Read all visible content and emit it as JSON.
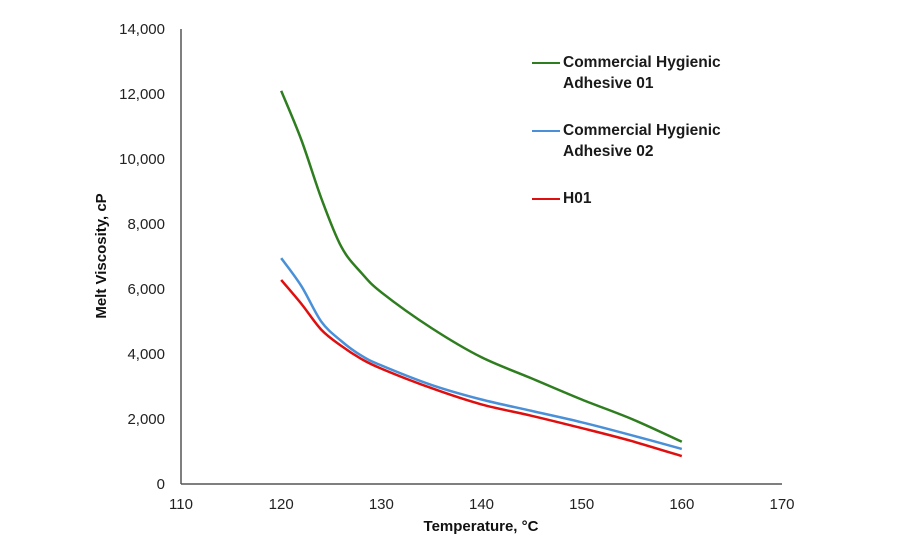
{
  "chart_data": {
    "type": "line",
    "title": "",
    "xlabel": "Temperature, °C",
    "ylabel": "Melt Viscosity, cP",
    "xlim": [
      110,
      170
    ],
    "ylim": [
      0,
      14000
    ],
    "x_ticks": [
      110,
      120,
      130,
      140,
      150,
      160,
      170
    ],
    "x_tick_labels": [
      "110",
      "120",
      "130",
      "140",
      "150",
      "160",
      "170"
    ],
    "y_ticks": [
      0,
      2000,
      4000,
      6000,
      8000,
      10000,
      12000,
      14000
    ],
    "y_tick_labels": [
      "0",
      "2,000",
      "4,000",
      "6,000",
      "8,000",
      "10,000",
      "12,000",
      "14,000"
    ],
    "grid": false,
    "legend_position": "top-right",
    "x": [
      120,
      122,
      124,
      126,
      128,
      130,
      135,
      140,
      145,
      150,
      155,
      160
    ],
    "series": [
      {
        "name": "Commercial Hygienic Adhesive 01",
        "legend_lines": [
          "Commercial Hygienic",
          "Adhesive 01"
        ],
        "color": "#2e7d1f",
        "values": [
          12100,
          10600,
          8800,
          7300,
          6500,
          5900,
          4800,
          3900,
          3250,
          2600,
          2000,
          1300
        ]
      },
      {
        "name": "Commercial Hygienic Adhesive 02",
        "legend_lines": [
          "Commercial Hygienic",
          "Adhesive 02"
        ],
        "color": "#4a90d9",
        "values": [
          6950,
          6100,
          5000,
          4400,
          3950,
          3650,
          3050,
          2600,
          2250,
          1900,
          1500,
          1080
        ]
      },
      {
        "name": "H01",
        "legend_lines": [
          "H01"
        ],
        "color": "#e00f0f",
        "values": [
          6280,
          5550,
          4750,
          4250,
          3850,
          3550,
          2950,
          2450,
          2100,
          1720,
          1320,
          860
        ]
      }
    ]
  }
}
